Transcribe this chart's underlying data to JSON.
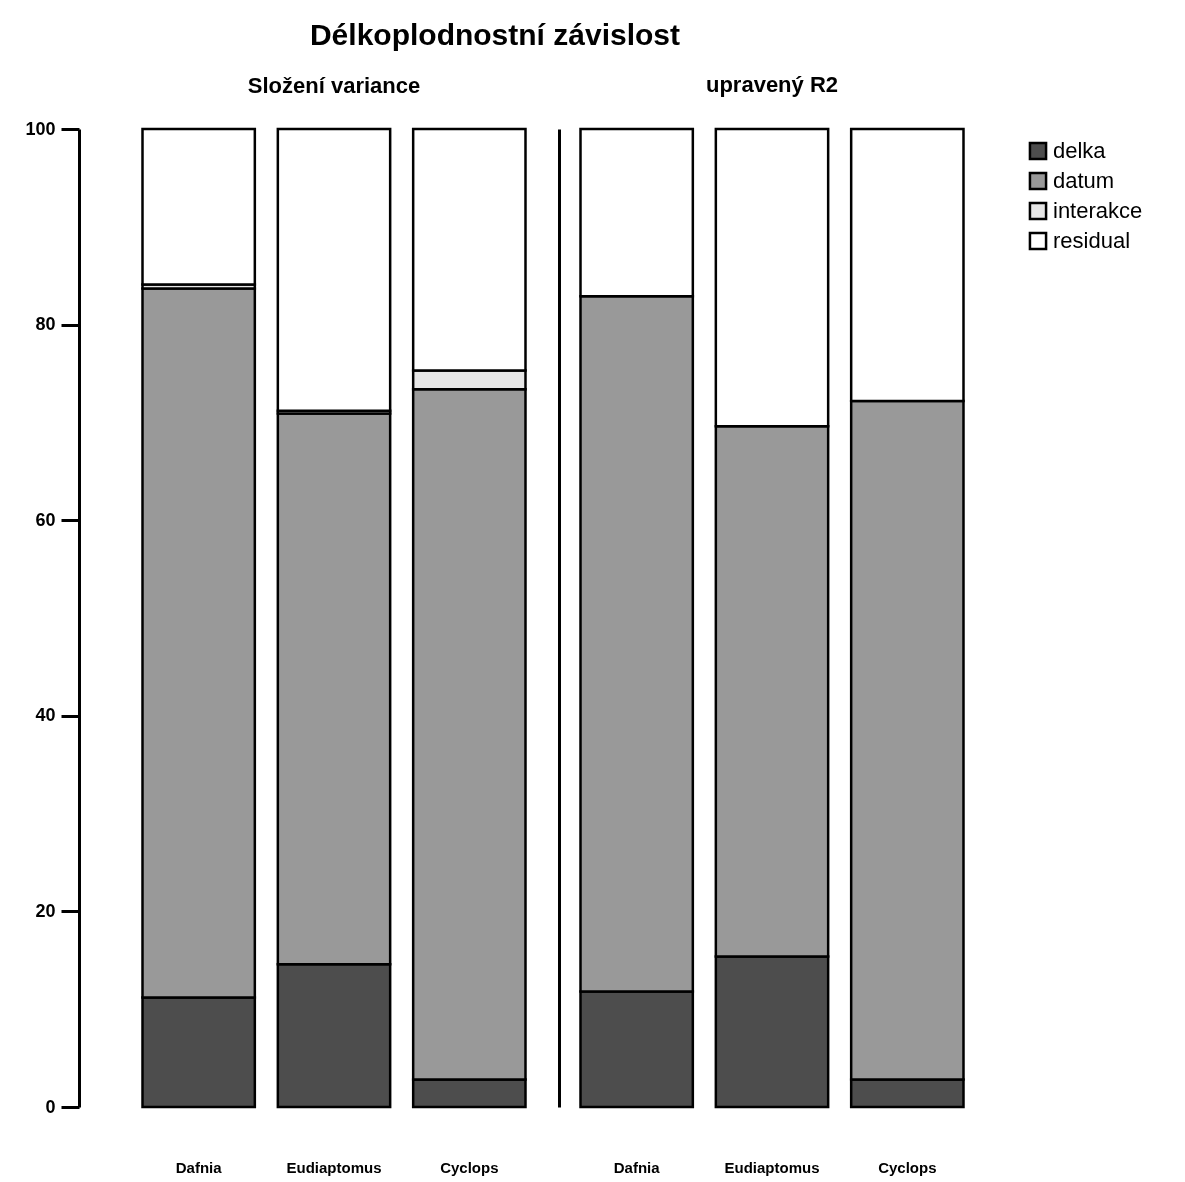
{
  "chart_data": [
    {
      "type": "bar",
      "title": "Délkoplodnostní závislost",
      "subtitle": "Složení variance",
      "categories": [
        "Dafnia",
        "Eudiaptomus",
        "Cyclops"
      ],
      "stacked": true,
      "ylim": [
        0,
        100
      ],
      "yticks": [
        0,
        20,
        40,
        60,
        80,
        100
      ],
      "legend": "top right",
      "series": [
        {
          "name": "delka",
          "color": "#4d4d4d",
          "values": [
            11.2,
            14.6,
            2.8
          ]
        },
        {
          "name": "datum",
          "color": "#999999",
          "values": [
            72.5,
            56.3,
            70.6
          ]
        },
        {
          "name": "interakce",
          "color": "#e6e6e6",
          "values": [
            0.4,
            0.3,
            1.9
          ]
        },
        {
          "name": "residual",
          "color": "#ffffff",
          "values": [
            15.9,
            28.8,
            24.7
          ]
        }
      ]
    },
    {
      "type": "bar",
      "title": "upravený R2",
      "categories": [
        "Dafnia",
        "Eudiaptomus",
        "Cyclops"
      ],
      "stacked": true,
      "ylim": [
        0,
        100
      ],
      "yticks": [
        0,
        20,
        40,
        60,
        80,
        100
      ],
      "tick_labels": "x",
      "legend": "top right",
      "series": [
        {
          "name": "delka",
          "color": "#4d4d4d",
          "values": [
            11.8,
            15.4,
            2.8
          ]
        },
        {
          "name": "datum",
          "color": "#999999",
          "values": [
            71.1,
            54.2,
            69.4
          ]
        },
        {
          "name": "interakce",
          "color": "#e6e6e6",
          "values": [
            null,
            null,
            null
          ]
        },
        {
          "name": "residual",
          "color": "#ffffff",
          "values": [
            17.1,
            30.4,
            27.8
          ]
        }
      ]
    }
  ]
}
